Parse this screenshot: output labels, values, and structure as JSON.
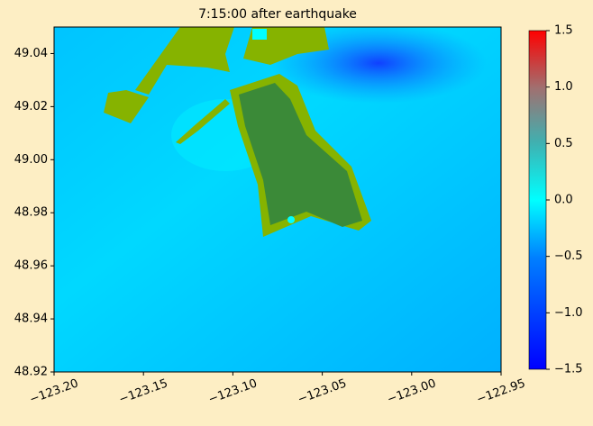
{
  "chart_data": {
    "type": "heatmap",
    "title": "7:15:00 after earthquake",
    "xlim": [
      -123.2,
      -122.95
    ],
    "xticks": [
      {
        "value": -123.2,
        "label": "−123.20"
      },
      {
        "value": -123.15,
        "label": "−123.15"
      },
      {
        "value": -123.1,
        "label": "−123.10"
      },
      {
        "value": -123.05,
        "label": "−123.05"
      },
      {
        "value": -123.0,
        "label": "−123.00"
      },
      {
        "value": -122.95,
        "label": "−122.95"
      }
    ],
    "ylim": [
      48.92,
      49.05
    ],
    "yticks": [
      48.92,
      48.94,
      48.96,
      48.98,
      {
        "value": 49.0,
        "label": "49.00"
      },
      49.02,
      49.04
    ],
    "colorbar": {
      "lim": [
        -1.5,
        1.5
      ],
      "ticks": [
        {
          "value": -1.5,
          "label": "−1.5"
        },
        {
          "value": -1.0,
          "label": "−1.0"
        },
        {
          "value": -0.5,
          "label": "−0.5"
        },
        {
          "value": 0.0,
          "label": "0.0"
        },
        0.5,
        {
          "value": 1.0,
          "label": "1.0"
        },
        1.5
      ]
    }
  }
}
